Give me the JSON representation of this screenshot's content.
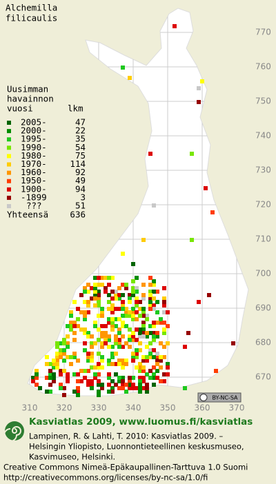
{
  "title": [
    "Alchemilla",
    "filicaulis"
  ],
  "legend": {
    "header": [
      "Uusimman",
      "havainnon",
      "vuosi"
    ],
    "count_header": "lkm",
    "rows": [
      {
        "label": "2005-",
        "count": 47,
        "color": "#006400"
      },
      {
        "label": "2000-",
        "count": 22,
        "color": "#008c00"
      },
      {
        "label": "1995-",
        "count": 35,
        "color": "#1ec81e"
      },
      {
        "label": "1990-",
        "count": 54,
        "color": "#78e600"
      },
      {
        "label": "1980-",
        "count": 75,
        "color": "#ffff00"
      },
      {
        "label": "1970-",
        "count": 114,
        "color": "#ffcc00"
      },
      {
        "label": "1960-",
        "count": 92,
        "color": "#ff9600"
      },
      {
        "label": "1950-",
        "count": 49,
        "color": "#ff3c00"
      },
      {
        "label": "1900-",
        "count": 94,
        "color": "#dc0000"
      },
      {
        "label": "-1899",
        "count": 3,
        "color": "#960000"
      },
      {
        "label": "???",
        "count": 51,
        "color": "#c8c8c8"
      }
    ],
    "total_label": "Yhteensä",
    "total": 636
  },
  "northing_ticks": [
    770,
    760,
    750,
    740,
    730,
    720,
    710,
    700,
    690,
    680,
    670
  ],
  "easting_ticks": [
    310,
    320,
    330,
    340,
    350,
    360,
    370
  ],
  "license_badge": "BY-NC-SA",
  "footer": {
    "heading": "Kasviatlas 2009, www.luomus.fi/kasviatlas",
    "citation": [
      "Lampinen, R. & Lahti, T. 2010: Kasviatlas 2009. –",
      "Helsingin Yliopisto, Luonnontieteellinen keskusmuseo,",
      "Kasvimuseo, Helsinki."
    ],
    "license": [
      "Creative Commons Nimeä-Epäkaupallinen-Tarttuva 1.0 Suomi",
      "http://creativecommons.org/licenses/by-nc-sa/1.0/fi"
    ]
  }
}
